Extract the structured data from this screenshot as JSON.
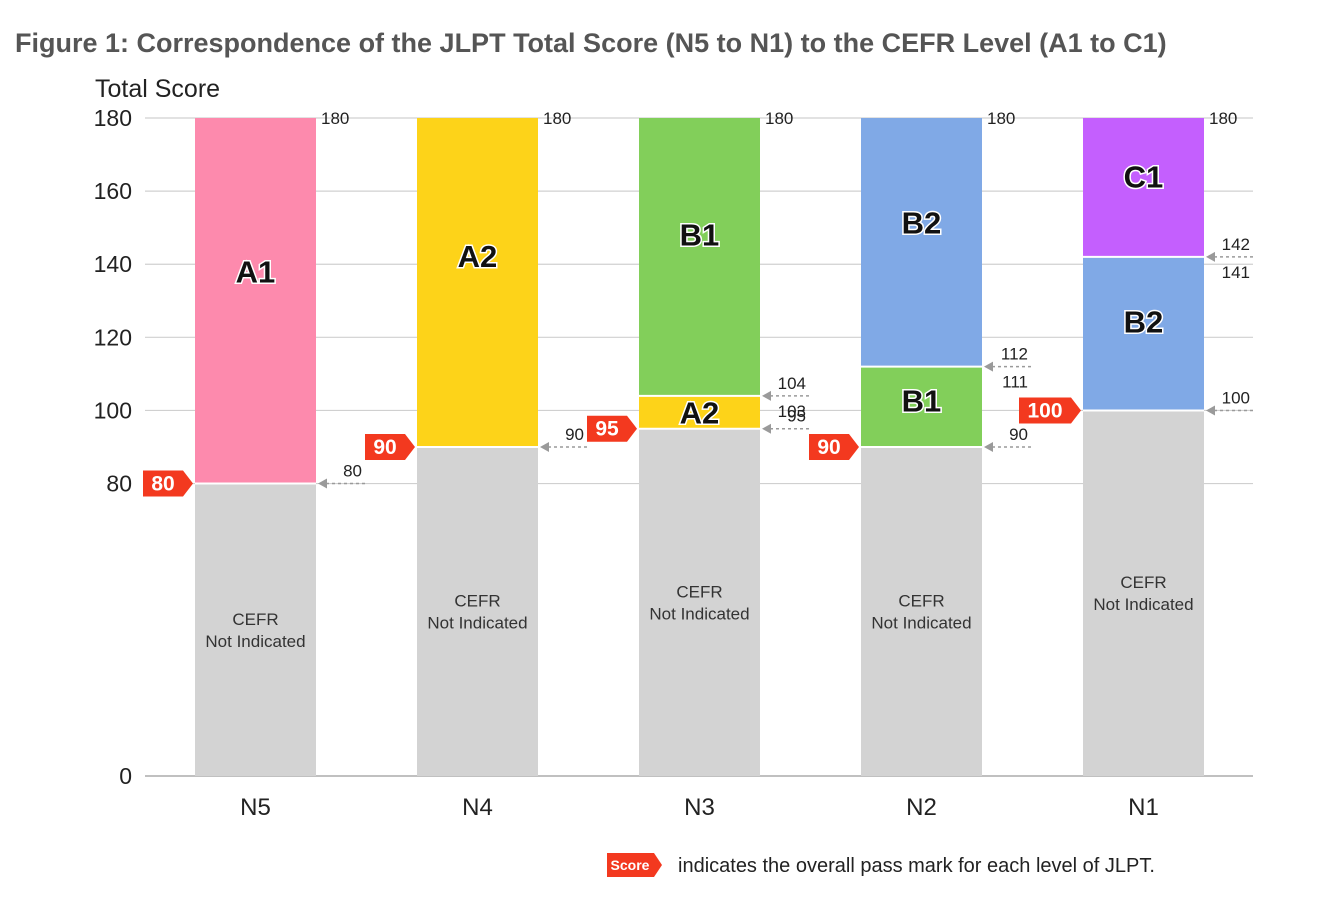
{
  "chart_data": {
    "type": "bar",
    "title": "Figure 1: Correspondence of the JLPT Total Score (N5 to N1) to the CEFR Level (A1 to C1)",
    "ylabel": "Total Score",
    "ylim": [
      0,
      180
    ],
    "yticks": [
      "0",
      "80",
      "100",
      "120",
      "140",
      "160",
      "180"
    ],
    "grid": true,
    "categories": [
      "N5",
      "N4",
      "N3",
      "N2",
      "N1"
    ],
    "colors": {
      "not_indicated": "#d3d3d3",
      "A1": "#fd8aad",
      "A2": "#fdd319",
      "B1": "#82cf5a",
      "B2": "#80a9e6",
      "C1": "#c45ffe",
      "pass_mark": "#f3391f"
    },
    "bars": [
      {
        "category": "N5",
        "pass_mark": "80",
        "segments": [
          {
            "from": 0,
            "to": 80,
            "level": "not_indicated",
            "label_lines": [
              "CEFR",
              "Not Indicated"
            ]
          },
          {
            "from": 80,
            "to": 180,
            "level": "A1",
            "label_lines": [
              "A1"
            ]
          }
        ],
        "boundaries": [
          {
            "value": 80,
            "labels": [
              "80"
            ]
          },
          {
            "value": 180,
            "labels": [
              "180"
            ]
          }
        ]
      },
      {
        "category": "N4",
        "pass_mark": "90",
        "segments": [
          {
            "from": 0,
            "to": 90,
            "level": "not_indicated",
            "label_lines": [
              "CEFR",
              "Not Indicated"
            ]
          },
          {
            "from": 90,
            "to": 180,
            "level": "A2",
            "label_lines": [
              "A2"
            ]
          }
        ],
        "boundaries": [
          {
            "value": 90,
            "labels": [
              "90"
            ]
          },
          {
            "value": 180,
            "labels": [
              "180"
            ]
          }
        ]
      },
      {
        "category": "N3",
        "pass_mark": "95",
        "segments": [
          {
            "from": 0,
            "to": 95,
            "level": "not_indicated",
            "label_lines": [
              "CEFR",
              "Not Indicated"
            ]
          },
          {
            "from": 95,
            "to": 104,
            "level": "A2",
            "label_lines": [
              "A2"
            ]
          },
          {
            "from": 104,
            "to": 180,
            "level": "B1",
            "label_lines": [
              "B1"
            ]
          }
        ],
        "boundaries": [
          {
            "value": 95,
            "labels": [
              "95"
            ]
          },
          {
            "value": 104,
            "labels": [
              "104",
              "103"
            ]
          },
          {
            "value": 180,
            "labels": [
              "180"
            ]
          }
        ]
      },
      {
        "category": "N2",
        "pass_mark": "90",
        "segments": [
          {
            "from": 0,
            "to": 90,
            "level": "not_indicated",
            "label_lines": [
              "CEFR",
              "Not Indicated"
            ]
          },
          {
            "from": 90,
            "to": 112,
            "level": "B1",
            "label_lines": [
              "B1"
            ]
          },
          {
            "from": 112,
            "to": 180,
            "level": "B2",
            "label_lines": [
              "B2"
            ]
          }
        ],
        "boundaries": [
          {
            "value": 90,
            "labels": [
              "90"
            ]
          },
          {
            "value": 112,
            "labels": [
              "112",
              "111"
            ]
          },
          {
            "value": 180,
            "labels": [
              "180"
            ]
          }
        ]
      },
      {
        "category": "N1",
        "pass_mark": "100",
        "segments": [
          {
            "from": 0,
            "to": 100,
            "level": "not_indicated",
            "label_lines": [
              "CEFR",
              "Not Indicated"
            ]
          },
          {
            "from": 100,
            "to": 142,
            "level": "B2",
            "label_lines": [
              "B2"
            ]
          },
          {
            "from": 142,
            "to": 180,
            "level": "C1",
            "label_lines": [
              "C1"
            ]
          }
        ],
        "boundaries": [
          {
            "value": 100,
            "labels": [
              "100"
            ]
          },
          {
            "value": 142,
            "labels": [
              "142",
              "141"
            ]
          },
          {
            "value": 180,
            "labels": [
              "180"
            ]
          }
        ]
      }
    ],
    "legend": {
      "badge": "Score",
      "text": "indicates the overall pass mark for each level of JLPT."
    }
  }
}
